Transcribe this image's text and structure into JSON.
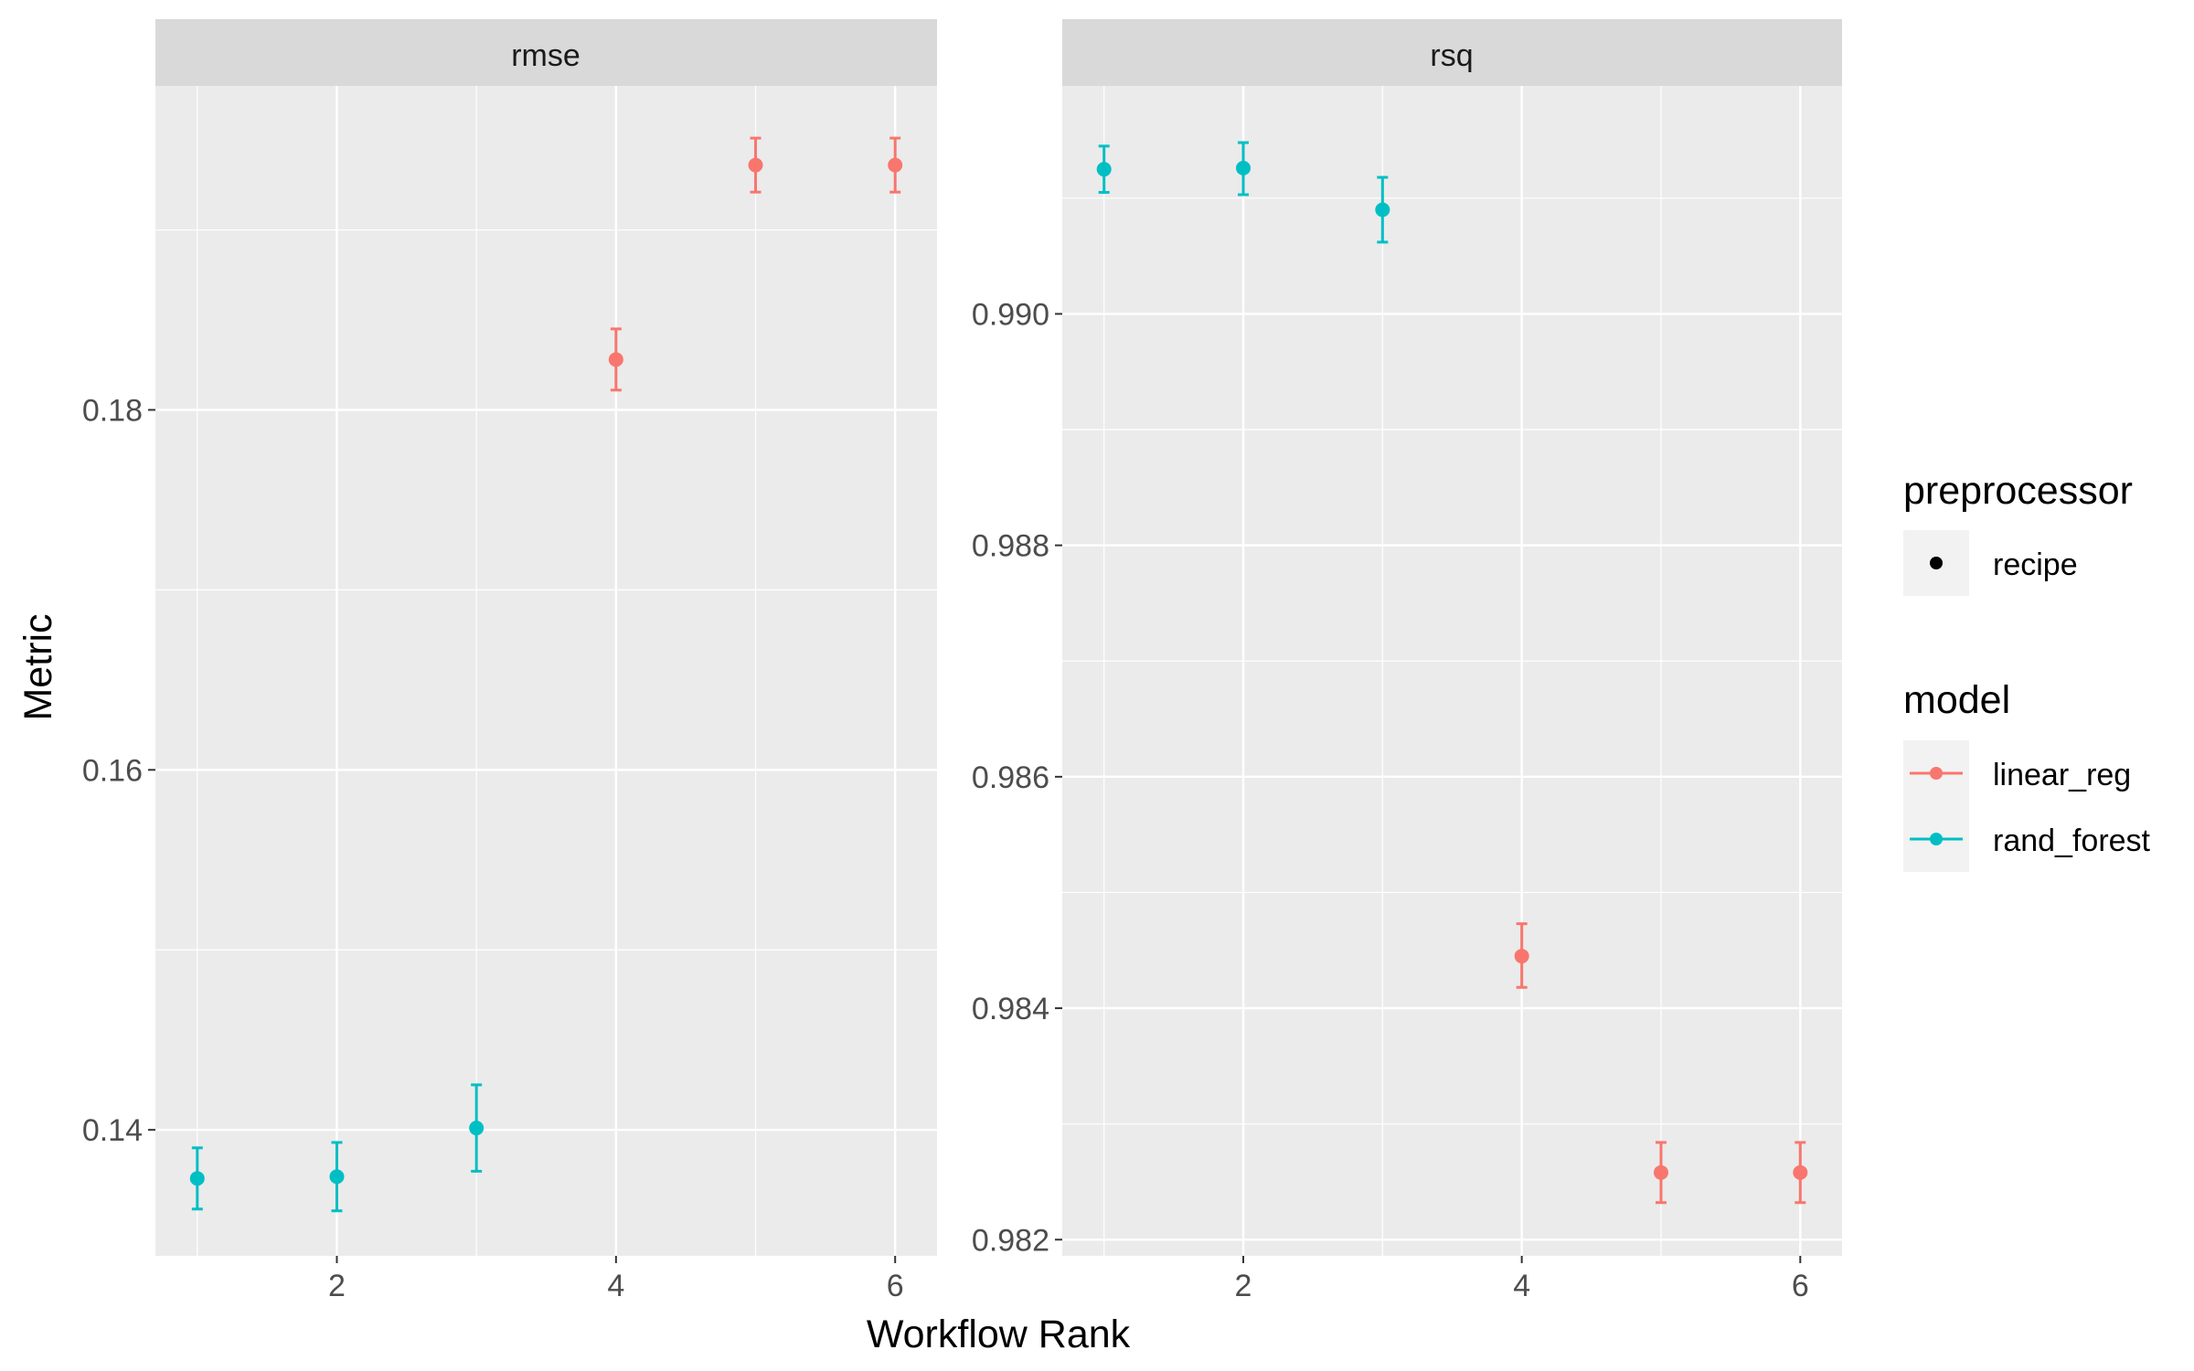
{
  "chart_data": {
    "type": "scatter",
    "xlabel": "Workflow Rank",
    "ylabel": "Metric",
    "grid": true,
    "legend_position": "right",
    "facets": [
      {
        "strip": "rmse",
        "xlim": [
          0.7,
          6.3
        ],
        "xticks": [
          2,
          4,
          6
        ],
        "ylim": [
          0.133,
          0.198
        ],
        "yticks": [
          0.14,
          0.16,
          0.18
        ],
        "ytick_labels": [
          "0.14",
          "0.16",
          "0.18"
        ],
        "points": [
          {
            "x": 1,
            "y": 0.1373,
            "lo": 0.1356,
            "hi": 0.139,
            "model": "rand_forest"
          },
          {
            "x": 2,
            "y": 0.1374,
            "lo": 0.1355,
            "hi": 0.1393,
            "model": "rand_forest"
          },
          {
            "x": 3,
            "y": 0.1401,
            "lo": 0.1377,
            "hi": 0.1425,
            "model": "rand_forest"
          },
          {
            "x": 4,
            "y": 0.1828,
            "lo": 0.1811,
            "hi": 0.1845,
            "model": "linear_reg"
          },
          {
            "x": 5,
            "y": 0.1936,
            "lo": 0.1921,
            "hi": 0.1951,
            "model": "linear_reg"
          },
          {
            "x": 6,
            "y": 0.1936,
            "lo": 0.1921,
            "hi": 0.1951,
            "model": "linear_reg"
          }
        ]
      },
      {
        "strip": "rsq",
        "xlim": [
          0.7,
          6.3
        ],
        "xticks": [
          2,
          4,
          6
        ],
        "ylim": [
          0.98186,
          0.99197
        ],
        "yticks": [
          0.982,
          0.984,
          0.986,
          0.988,
          0.99
        ],
        "ytick_labels": [
          "0.982",
          "0.984",
          "0.986",
          "0.988",
          "0.990"
        ],
        "points": [
          {
            "x": 1,
            "y": 0.99125,
            "lo": 0.99105,
            "hi": 0.99145,
            "model": "rand_forest"
          },
          {
            "x": 2,
            "y": 0.99126,
            "lo": 0.99103,
            "hi": 0.99148,
            "model": "rand_forest"
          },
          {
            "x": 3,
            "y": 0.9909,
            "lo": 0.99062,
            "hi": 0.99118,
            "model": "rand_forest"
          },
          {
            "x": 4,
            "y": 0.98445,
            "lo": 0.98418,
            "hi": 0.98473,
            "model": "linear_reg"
          },
          {
            "x": 5,
            "y": 0.98258,
            "lo": 0.98232,
            "hi": 0.98284,
            "model": "linear_reg"
          },
          {
            "x": 6,
            "y": 0.98258,
            "lo": 0.98232,
            "hi": 0.98284,
            "model": "linear_reg"
          }
        ]
      }
    ],
    "legend": {
      "preprocessor": {
        "title": "preprocessor",
        "items": [
          {
            "label": "recipe",
            "color": "#000000"
          }
        ]
      },
      "model": {
        "title": "model",
        "items": [
          {
            "label": "linear_reg",
            "color": "#F8766D"
          },
          {
            "label": "rand_forest",
            "color": "#00BFC4"
          }
        ]
      }
    }
  }
}
